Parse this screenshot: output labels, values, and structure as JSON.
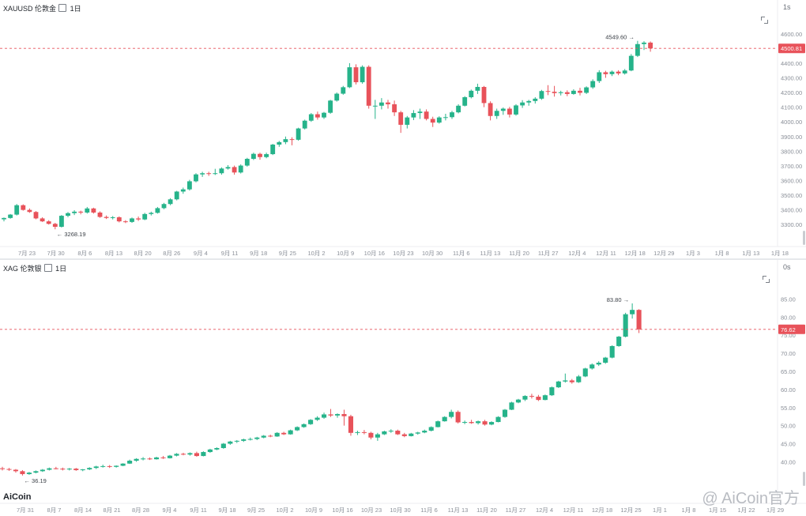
{
  "top": {
    "symbol": "XAUUSD",
    "name": "伦敦金",
    "interval": "1日",
    "refresh": "1s",
    "current_price": "4500.81",
    "current_price_value": 4500.81,
    "high_label": "4549.60",
    "low_label": "3268.19",
    "y_ticks": [
      "4600.00",
      "4500.00",
      "4400.00",
      "4300.00",
      "4200.00",
      "4100.00",
      "4000.00",
      "3900.00",
      "3800.00",
      "3700.00",
      "3600.00",
      "3500.00",
      "3400.00",
      "3300.00"
    ],
    "x_ticks": [
      "7月 23",
      "7月 30",
      "8月 6",
      "8月 13",
      "8月 20",
      "8月 26",
      "9月 4",
      "9月 11",
      "9月 18",
      "9月 25",
      "10月 2",
      "10月 9",
      "10月 16",
      "10月 23",
      "10月 30",
      "11月 6",
      "11月 13",
      "11月 20",
      "11月 27",
      "12月 4",
      "12月 11",
      "12月 18",
      "12月 29",
      "1月 3",
      "1月 8",
      "1月 13",
      "1月 18"
    ]
  },
  "bottom": {
    "symbol": "XAG",
    "name": "伦敦银",
    "interval": "1日",
    "refresh": "0s",
    "current_price": "76.62",
    "current_price_value": 76.62,
    "high_label": "83.80",
    "low_label": "36.19",
    "y_ticks": [
      "85.00",
      "80.00",
      "75.00",
      "70.00",
      "65.00",
      "60.00",
      "55.00",
      "50.00",
      "45.00",
      "40.00"
    ],
    "x_ticks": [
      "7月 31",
      "8月 7",
      "8月 14",
      "8月 21",
      "8月 28",
      "9月 4",
      "9月 11",
      "9月 18",
      "9月 25",
      "10月 2",
      "10月 9",
      "10月 16",
      "10月 23",
      "10月 30",
      "11月 6",
      "11月 13",
      "11月 20",
      "11月 27",
      "12月 4",
      "12月 11",
      "12月 18",
      "12月 25",
      "1月 1",
      "1月 8",
      "1月 15",
      "1月 22",
      "1月 29"
    ]
  },
  "logo": "AiCoin",
  "watermark": "@ AiCoin官方",
  "chart_data": [
    {
      "type": "candlestick",
      "title": "XAUUSD 伦敦金 · 1日",
      "ylim": [
        3250,
        4650
      ],
      "colors": {
        "up": "#26b38a",
        "down": "#e8525a",
        "price_line": "#e8525a"
      },
      "candles": [
        [
          3336,
          3348,
          3322,
          3345
        ],
        [
          3345,
          3372,
          3340,
          3368
        ],
        [
          3368,
          3440,
          3362,
          3432
        ],
        [
          3432,
          3438,
          3395,
          3400
        ],
        [
          3400,
          3410,
          3380,
          3386
        ],
        [
          3386,
          3392,
          3336,
          3342
        ],
        [
          3342,
          3350,
          3318,
          3322
        ],
        [
          3322,
          3330,
          3300,
          3305
        ],
        [
          3305,
          3312,
          3268,
          3285
        ],
        [
          3285,
          3365,
          3280,
          3360
        ],
        [
          3360,
          3385,
          3350,
          3378
        ],
        [
          3378,
          3398,
          3365,
          3388
        ],
        [
          3388,
          3395,
          3370,
          3382
        ],
        [
          3382,
          3420,
          3375,
          3410
        ],
        [
          3410,
          3415,
          3375,
          3382
        ],
        [
          3382,
          3390,
          3346,
          3352
        ],
        [
          3352,
          3362,
          3338,
          3345
        ],
        [
          3345,
          3358,
          3335,
          3350
        ],
        [
          3350,
          3356,
          3315,
          3322
        ],
        [
          3322,
          3330,
          3310,
          3318
        ],
        [
          3318,
          3348,
          3312,
          3342
        ],
        [
          3342,
          3355,
          3325,
          3335
        ],
        [
          3335,
          3380,
          3330,
          3372
        ],
        [
          3372,
          3388,
          3362,
          3380
        ],
        [
          3380,
          3420,
          3375,
          3412
        ],
        [
          3412,
          3448,
          3405,
          3440
        ],
        [
          3440,
          3480,
          3432,
          3472
        ],
        [
          3472,
          3530,
          3465,
          3525
        ],
        [
          3525,
          3552,
          3510,
          3540
        ],
        [
          3540,
          3605,
          3532,
          3595
        ],
        [
          3595,
          3650,
          3588,
          3642
        ],
        [
          3642,
          3660,
          3625,
          3650
        ],
        [
          3650,
          3660,
          3632,
          3645
        ],
        [
          3645,
          3680,
          3638,
          3650
        ],
        [
          3650,
          3690,
          3640,
          3682
        ],
        [
          3682,
          3705,
          3675,
          3692
        ],
        [
          3692,
          3702,
          3640,
          3655
        ],
        [
          3655,
          3710,
          3648,
          3702
        ],
        [
          3702,
          3755,
          3695,
          3748
        ],
        [
          3748,
          3790,
          3740,
          3782
        ],
        [
          3782,
          3790,
          3742,
          3760
        ],
        [
          3760,
          3790,
          3752,
          3780
        ],
        [
          3780,
          3850,
          3774,
          3845
        ],
        [
          3845,
          3870,
          3830,
          3862
        ],
        [
          3862,
          3900,
          3848,
          3882
        ],
        [
          3882,
          3895,
          3840,
          3878
        ],
        [
          3878,
          3960,
          3872,
          3955
        ],
        [
          3955,
          4015,
          3948,
          4008
        ],
        [
          4008,
          4060,
          4000,
          4052
        ],
        [
          4052,
          4070,
          4015,
          4030
        ],
        [
          4030,
          4068,
          4020,
          4062
        ],
        [
          4062,
          4150,
          4055,
          4145
        ],
        [
          4145,
          4200,
          4138,
          4192
        ],
        [
          4192,
          4245,
          4185,
          4236
        ],
        [
          4236,
          4400,
          4230,
          4372
        ],
        [
          4372,
          4392,
          4255,
          4270
        ],
        [
          4270,
          4385,
          4260,
          4375
        ],
        [
          4375,
          4385,
          4090,
          4110
        ],
        [
          4110,
          4150,
          4020,
          4110
        ],
        [
          4110,
          4162,
          4085,
          4132
        ],
        [
          4132,
          4150,
          4090,
          4120
        ],
        [
          4120,
          4145,
          4040,
          4065
        ],
        [
          4065,
          4075,
          3925,
          3980
        ],
        [
          3980,
          4040,
          3955,
          4030
        ],
        [
          4030,
          4080,
          4012,
          4060
        ],
        [
          4060,
          4090,
          4020,
          4070
        ],
        [
          4070,
          4085,
          4010,
          4020
        ],
        [
          4020,
          4035,
          3965,
          3995
        ],
        [
          3995,
          4038,
          3988,
          4030
        ],
        [
          4030,
          4055,
          4010,
          4032
        ],
        [
          4032,
          4075,
          4020,
          4065
        ],
        [
          4065,
          4120,
          4058,
          4110
        ],
        [
          4110,
          4175,
          4105,
          4168
        ],
        [
          4168,
          4220,
          4160,
          4212
        ],
        [
          4212,
          4260,
          4190,
          4238
        ],
        [
          4238,
          4245,
          4100,
          4128
        ],
        [
          4128,
          4140,
          4010,
          4040
        ],
        [
          4040,
          4090,
          4020,
          4075
        ],
        [
          4075,
          4098,
          4048,
          4090
        ],
        [
          4090,
          4102,
          4030,
          4050
        ],
        [
          4050,
          4120,
          4042,
          4112
        ],
        [
          4112,
          4148,
          4095,
          4132
        ],
        [
          4132,
          4150,
          4110,
          4142
        ],
        [
          4142,
          4168,
          4125,
          4158
        ],
        [
          4158,
          4218,
          4150,
          4210
        ],
        [
          4210,
          4250,
          4182,
          4205
        ],
        [
          4205,
          4245,
          4172,
          4196
        ],
        [
          4196,
          4212,
          4180,
          4202
        ],
        [
          4202,
          4215,
          4175,
          4190
        ],
        [
          4190,
          4222,
          4185,
          4212
        ],
        [
          4212,
          4232,
          4180,
          4198
        ],
        [
          4198,
          4242,
          4190,
          4235
        ],
        [
          4235,
          4290,
          4225,
          4278
        ],
        [
          4278,
          4352,
          4265,
          4338
        ],
        [
          4338,
          4348,
          4300,
          4325
        ],
        [
          4325,
          4350,
          4312,
          4342
        ],
        [
          4342,
          4352,
          4318,
          4330
        ],
        [
          4330,
          4360,
          4322,
          4350
        ],
        [
          4350,
          4462,
          4345,
          4450
        ],
        [
          4450,
          4552,
          4442,
          4530
        ],
        [
          4530,
          4550,
          4490,
          4540
        ],
        [
          4540,
          4548,
          4478,
          4500.81
        ]
      ]
    },
    {
      "type": "candlestick",
      "title": "XAG 伦敦银 · 1日",
      "ylim": [
        35.5,
        87.5
      ],
      "colors": {
        "up": "#26b38a",
        "down": "#e8525a",
        "price_line": "#e8525a"
      },
      "candles": [
        [
          38.2,
          38.6,
          37.6,
          38.0
        ],
        [
          38.0,
          38.3,
          37.5,
          37.8
        ],
        [
          37.8,
          38.0,
          37.0,
          37.4
        ],
        [
          37.4,
          37.7,
          36.2,
          36.6
        ],
        [
          36.6,
          37.2,
          36.4,
          37.0
        ],
        [
          37.0,
          37.6,
          36.8,
          37.4
        ],
        [
          37.4,
          38.0,
          37.2,
          37.8
        ],
        [
          37.8,
          38.4,
          37.6,
          38.2
        ],
        [
          38.2,
          38.6,
          37.9,
          38.1
        ],
        [
          38.1,
          38.4,
          37.6,
          37.9
        ],
        [
          37.9,
          38.3,
          37.6,
          38.1
        ],
        [
          38.1,
          38.3,
          37.5,
          37.7
        ],
        [
          37.7,
          38.0,
          37.4,
          37.9
        ],
        [
          37.9,
          38.5,
          37.7,
          38.3
        ],
        [
          38.3,
          38.9,
          38.0,
          38.7
        ],
        [
          38.7,
          39.2,
          38.4,
          38.8
        ],
        [
          38.8,
          39.1,
          38.3,
          38.6
        ],
        [
          38.6,
          39.0,
          38.4,
          38.9
        ],
        [
          38.9,
          39.6,
          38.8,
          39.5
        ],
        [
          39.5,
          40.6,
          39.4,
          40.3
        ],
        [
          40.3,
          41.0,
          40.0,
          40.8
        ],
        [
          40.8,
          41.3,
          40.4,
          40.9
        ],
        [
          40.9,
          41.2,
          40.5,
          40.7
        ],
        [
          40.7,
          41.4,
          40.6,
          41.2
        ],
        [
          41.2,
          41.6,
          40.8,
          41.0
        ],
        [
          41.0,
          41.9,
          40.9,
          41.7
        ],
        [
          41.7,
          42.4,
          41.5,
          42.2
        ],
        [
          42.2,
          42.5,
          41.8,
          42.0
        ],
        [
          42.0,
          42.6,
          41.7,
          42.4
        ],
        [
          42.4,
          42.8,
          41.4,
          41.6
        ],
        [
          41.6,
          42.9,
          41.5,
          42.7
        ],
        [
          42.7,
          43.6,
          42.5,
          43.4
        ],
        [
          43.4,
          44.0,
          43.2,
          43.8
        ],
        [
          43.8,
          45.2,
          43.6,
          45.0
        ],
        [
          45.0,
          45.8,
          44.7,
          45.6
        ],
        [
          45.6,
          46.0,
          45.2,
          45.8
        ],
        [
          45.8,
          46.4,
          45.5,
          46.2
        ],
        [
          46.2,
          46.7,
          45.9,
          46.3
        ],
        [
          46.3,
          46.9,
          46.0,
          46.7
        ],
        [
          46.7,
          47.4,
          46.5,
          47.2
        ],
        [
          47.2,
          47.5,
          46.8,
          47.0
        ],
        [
          47.0,
          48.2,
          46.9,
          48.0
        ],
        [
          48.0,
          48.3,
          47.4,
          47.6
        ],
        [
          47.6,
          48.9,
          47.5,
          48.7
        ],
        [
          48.7,
          49.8,
          48.5,
          49.6
        ],
        [
          49.6,
          50.6,
          49.4,
          50.4
        ],
        [
          50.4,
          51.8,
          50.2,
          51.6
        ],
        [
          51.6,
          52.6,
          51.3,
          52.2
        ],
        [
          52.2,
          53.6,
          51.9,
          53.1
        ],
        [
          53.1,
          54.6,
          52.4,
          52.8
        ],
        [
          52.8,
          53.4,
          52.2,
          53.2
        ],
        [
          53.2,
          54.4,
          50.0,
          52.6
        ],
        [
          52.6,
          53.0,
          47.2,
          48.0
        ],
        [
          48.0,
          48.6,
          47.4,
          48.2
        ],
        [
          48.2,
          48.8,
          47.6,
          48.0
        ],
        [
          48.0,
          48.3,
          46.2,
          46.7
        ],
        [
          46.7,
          48.0,
          45.8,
          47.6
        ],
        [
          47.6,
          48.6,
          47.4,
          48.4
        ],
        [
          48.4,
          49.0,
          48.0,
          48.6
        ],
        [
          48.6,
          48.9,
          47.4,
          47.6
        ],
        [
          47.6,
          48.0,
          46.8,
          47.1
        ],
        [
          47.1,
          48.0,
          47.0,
          47.8
        ],
        [
          47.8,
          48.3,
          47.5,
          48.1
        ],
        [
          48.1,
          48.9,
          47.9,
          48.6
        ],
        [
          48.6,
          49.8,
          48.4,
          49.6
        ],
        [
          49.6,
          51.4,
          49.5,
          51.2
        ],
        [
          51.2,
          52.6,
          51.1,
          52.4
        ],
        [
          52.4,
          54.4,
          52.0,
          53.8
        ],
        [
          53.8,
          54.2,
          50.6,
          50.9
        ],
        [
          50.9,
          51.4,
          50.4,
          51.0
        ],
        [
          51.0,
          51.6,
          50.5,
          50.7
        ],
        [
          50.7,
          51.4,
          50.3,
          51.2
        ],
        [
          51.2,
          51.6,
          50.0,
          50.3
        ],
        [
          50.3,
          51.2,
          50.1,
          51.0
        ],
        [
          51.0,
          52.6,
          50.9,
          52.4
        ],
        [
          52.4,
          54.6,
          52.2,
          54.4
        ],
        [
          54.4,
          56.6,
          54.3,
          56.4
        ],
        [
          56.4,
          57.4,
          56.2,
          57.2
        ],
        [
          57.2,
          58.4,
          56.8,
          58.2
        ],
        [
          58.2,
          58.8,
          57.5,
          58.0
        ],
        [
          58.0,
          58.5,
          56.8,
          57.1
        ],
        [
          57.1,
          58.6,
          57.0,
          58.4
        ],
        [
          58.4,
          60.8,
          58.2,
          60.6
        ],
        [
          60.6,
          62.4,
          60.4,
          62.2
        ],
        [
          62.2,
          64.4,
          61.9,
          62.5
        ],
        [
          62.5,
          62.9,
          61.6,
          62.0
        ],
        [
          62.0,
          64.0,
          61.8,
          63.6
        ],
        [
          63.6,
          66.0,
          63.4,
          65.8
        ],
        [
          65.8,
          67.2,
          65.5,
          66.9
        ],
        [
          66.9,
          67.8,
          66.5,
          67.4
        ],
        [
          67.4,
          69.0,
          67.1,
          68.8
        ],
        [
          68.8,
          72.2,
          68.6,
          72.0
        ],
        [
          72.0,
          74.8,
          71.8,
          74.6
        ],
        [
          74.6,
          81.2,
          74.4,
          80.8
        ],
        [
          80.8,
          83.8,
          79.6,
          82.0
        ],
        [
          82.0,
          82.2,
          75.6,
          76.62
        ]
      ]
    }
  ]
}
